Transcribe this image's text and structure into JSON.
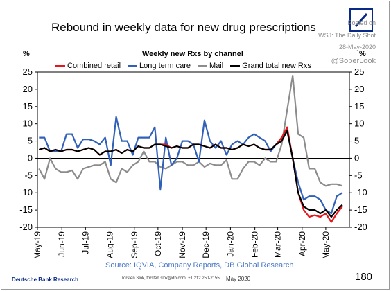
{
  "header": {
    "title": "Rebound in weekly data for new drug prescriptions",
    "watermark_posted": "Posted on",
    "watermark_source": "WSJ: The Daily Shot",
    "watermark_date": "28-May-2020",
    "watermark_handle": "@SoberLook",
    "logo": "deutsche-bank-logo"
  },
  "chart_data": {
    "type": "line",
    "title": "Weekly new Rxs by channel",
    "ylabel_left": "%",
    "ylabel_right": "%",
    "ylim": [
      -20,
      25
    ],
    "yticks": [
      25,
      20,
      15,
      10,
      5,
      0,
      -5,
      -10,
      -15,
      -20
    ],
    "xlim": [
      "2019-05-01",
      "2020-05-31"
    ],
    "xticks": [
      "May-19",
      "Jun-19",
      "Jul-19",
      "Aug-19",
      "Sep-19",
      "Oct-19",
      "Nov-19",
      "Dec-19",
      "Jan-20",
      "Feb-20",
      "Mar-20",
      "Apr-20",
      "May-20"
    ],
    "xtick_dates": [
      "2019-05-01",
      "2019-06-01",
      "2019-07-01",
      "2019-08-01",
      "2019-09-01",
      "2019-10-01",
      "2019-11-01",
      "2019-12-01",
      "2020-01-01",
      "2020-02-01",
      "2020-03-01",
      "2020-04-01",
      "2020-05-01"
    ],
    "legend_position": "top",
    "grid": false,
    "x": [
      "2019-05-03",
      "2019-05-10",
      "2019-05-17",
      "2019-05-24",
      "2019-05-31",
      "2019-06-07",
      "2019-06-14",
      "2019-06-21",
      "2019-06-28",
      "2019-07-05",
      "2019-07-12",
      "2019-07-19",
      "2019-07-26",
      "2019-08-02",
      "2019-08-09",
      "2019-08-16",
      "2019-08-23",
      "2019-08-30",
      "2019-09-06",
      "2019-09-13",
      "2019-09-20",
      "2019-09-27",
      "2019-10-04",
      "2019-10-11",
      "2019-10-18",
      "2019-10-25",
      "2019-11-01",
      "2019-11-08",
      "2019-11-15",
      "2019-11-22",
      "2019-11-29",
      "2019-12-06",
      "2019-12-13",
      "2019-12-20",
      "2019-12-27",
      "2020-01-03",
      "2020-01-10",
      "2020-01-17",
      "2020-01-24",
      "2020-01-31",
      "2020-02-07",
      "2020-02-14",
      "2020-02-21",
      "2020-02-28",
      "2020-03-06",
      "2020-03-13",
      "2020-03-20",
      "2020-03-27",
      "2020-04-03",
      "2020-04-10",
      "2020-04-17",
      "2020-04-24",
      "2020-05-01",
      "2020-05-08",
      "2020-05-15",
      "2020-05-22"
    ],
    "series": [
      {
        "name": "Combined retail",
        "color": "#e8151b",
        "values": [
          2.5,
          3,
          2,
          2.5,
          2,
          2.5,
          2.5,
          2,
          2.5,
          3,
          2.5,
          1,
          2,
          2,
          2.5,
          1.5,
          2.5,
          2,
          3.5,
          3,
          3,
          4,
          4,
          4,
          3,
          3.5,
          3,
          3,
          4,
          4,
          3.5,
          3,
          4,
          3,
          3,
          2.5,
          3,
          4,
          3.5,
          4,
          3,
          2.5,
          2.5,
          4,
          6,
          9,
          0,
          -10,
          -15,
          -17,
          -16.5,
          -17,
          -16,
          -18.5,
          -16,
          -14
        ]
      },
      {
        "name": "Long term care",
        "color": "#3060b8",
        "values": [
          6,
          6,
          2,
          2,
          2,
          7,
          7,
          3,
          5.5,
          5.5,
          5,
          4,
          6,
          -2,
          12,
          5,
          5,
          1,
          6,
          6,
          6,
          9,
          -9,
          6,
          -2,
          0,
          5,
          5,
          4,
          -1,
          11,
          5,
          3,
          5,
          1,
          4,
          5,
          4,
          6,
          7,
          6,
          5,
          2,
          4,
          6,
          8,
          0,
          -7,
          -12,
          -11,
          -11,
          -12,
          -15,
          -16,
          -11,
          -10
        ]
      },
      {
        "name": "Mail",
        "color": "#8c8c8c",
        "values": [
          -3,
          -6,
          0,
          -3,
          -4,
          -4,
          -3.5,
          -6,
          -3,
          -2.5,
          -2,
          -2,
          -1,
          -6,
          -7,
          -3,
          -4,
          -2,
          -1,
          2,
          -1,
          -1,
          -2.5,
          -3,
          -2,
          -1,
          -1,
          -2,
          -2,
          -1,
          -2.5,
          -1.5,
          -2,
          -2,
          -0.5,
          -6,
          -6,
          -3,
          -1,
          -1,
          -2,
          0,
          -1,
          -1,
          4,
          14,
          24,
          7,
          6,
          -3,
          -3,
          -7,
          -8,
          -7.5,
          -7.5,
          -8
        ]
      },
      {
        "name": "Grand total new Rxs",
        "color": "#000000",
        "values": [
          2.5,
          3,
          2,
          2.5,
          2,
          2.5,
          2.5,
          2,
          2.5,
          3,
          2.5,
          1,
          2,
          2,
          2.5,
          1.5,
          2.5,
          2,
          3.5,
          3,
          3,
          4,
          4,
          3.5,
          3,
          3.5,
          3,
          3,
          4,
          4,
          3.5,
          3,
          4,
          3,
          3,
          2.5,
          3,
          4,
          3.5,
          4,
          3,
          2.5,
          2.5,
          4,
          5,
          8,
          0,
          -10,
          -14,
          -15,
          -15,
          -16,
          -15,
          -17,
          -15,
          -13.5
        ]
      }
    ]
  },
  "footer": {
    "source": "Source: IQVIA, Company Reports, DB Global Research",
    "brand": "Deutsche Bank Research",
    "contact": "Torsten Slok, torsten.slok@db.com, +1 212 250-2155",
    "date": "May 2020",
    "page_number": "180"
  }
}
